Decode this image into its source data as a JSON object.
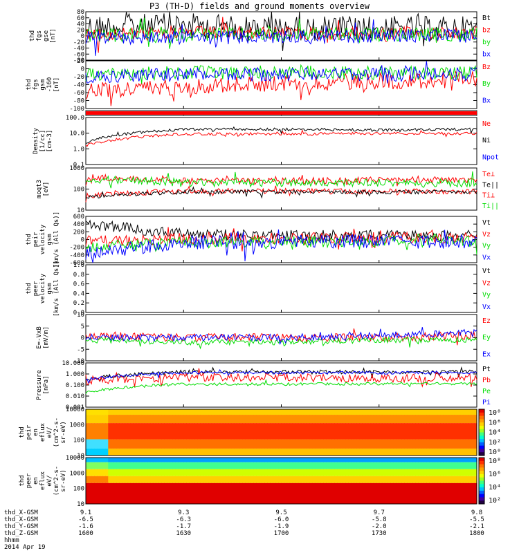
{
  "title": "P3 (TH-D) fields and ground moments overview",
  "date": "2014 Apr 19",
  "colors": {
    "black": "#000000",
    "red": "#ff0000",
    "green": "#00dd00",
    "blue": "#0000ff",
    "axis": "#000000"
  },
  "panels": [
    {
      "ylabel": [
        "thd",
        "fgs",
        "gse",
        "[nT]"
      ],
      "ticks": [
        "80",
        "60",
        "40",
        "20",
        "0",
        "-20",
        "-40",
        "-60",
        "-80"
      ],
      "yrange": [
        -80,
        80
      ],
      "legend": [
        {
          "text": "Bt",
          "color": "black"
        },
        {
          "text": "bz",
          "color": "red"
        },
        {
          "text": "by",
          "color": "green"
        },
        {
          "text": "bx",
          "color": "blue"
        }
      ]
    },
    {
      "ylabel": [
        "thd",
        "fgs",
        "gsm",
        "-160",
        "[nT]"
      ],
      "ticks": [
        "20",
        "0",
        "-20",
        "-40",
        "-60",
        "-80",
        "-100"
      ],
      "yrange": [
        -110,
        30
      ],
      "legend": [
        {
          "text": "Bz",
          "color": "red"
        },
        {
          "text": "By",
          "color": "green"
        },
        {
          "text": "Bx",
          "color": "blue"
        }
      ]
    },
    {
      "ylabel": [],
      "ticks": [],
      "legend": []
    },
    {
      "ylabel": [
        "Density",
        "[1/cc]",
        "[cm-3]"
      ],
      "ticks": [
        "100.0",
        "10.0",
        "1.0",
        "0.1"
      ],
      "yrange": [
        -1,
        2.2
      ],
      "log": true,
      "legend": [
        {
          "text": "Ne",
          "color": "red"
        },
        {
          "text": "Ni",
          "color": "black"
        },
        {
          "text": "Npot",
          "color": "blue"
        }
      ]
    },
    {
      "ylabel": [
        "moqt3",
        "[eV]"
      ],
      "ticks": [
        "1000",
        "100",
        "10"
      ],
      "yrange": [
        0.4,
        3.6
      ],
      "log": true,
      "legend": [
        {
          "text": "Te⊥",
          "color": "red"
        },
        {
          "text": "Te||",
          "color": "black"
        },
        {
          "text": "Ti⊥",
          "color": "red"
        },
        {
          "text": "Ti||",
          "color": "green"
        }
      ]
    },
    {
      "ylabel": [
        "thd",
        "peir",
        "velocity",
        "gsm",
        "[km/s (All Qs)]"
      ],
      "ticks": [
        "600",
        "400",
        "200",
        "0",
        "-200",
        "-400",
        "-600"
      ],
      "yrange": [
        -600,
        600
      ],
      "legend": [
        {
          "text": "Vt",
          "color": "black"
        },
        {
          "text": "Vz",
          "color": "red"
        },
        {
          "text": "Vy",
          "color": "green"
        },
        {
          "text": "Vx",
          "color": "blue"
        }
      ]
    },
    {
      "ylabel": [
        "thd",
        "peer",
        "velocity",
        "gsm",
        "[km/s (All Qs)]"
      ],
      "ticks": [
        "1.0",
        "0.8",
        "0.6",
        "0.4",
        "0.2",
        "0.0"
      ],
      "yrange": [
        0,
        1
      ],
      "legend": [
        {
          "text": "Vt",
          "color": "black"
        },
        {
          "text": "Vz",
          "color": "red"
        },
        {
          "text": "Vy",
          "color": "green"
        },
        {
          "text": "Vx",
          "color": "blue"
        }
      ]
    },
    {
      "ylabel": [
        "E=-VxB",
        "[mV/m]"
      ],
      "ticks": [
        "10",
        "5",
        "0",
        "-5",
        "-10"
      ],
      "yrange": [
        -10,
        10
      ],
      "legend": [
        {
          "text": "Ez",
          "color": "red"
        },
        {
          "text": "Ey",
          "color": "green"
        },
        {
          "text": "Ex",
          "color": "blue"
        }
      ]
    },
    {
      "ylabel": [
        "Pressure",
        "[nPa]"
      ],
      "ticks": [
        "10.000",
        "1.000",
        "0.100",
        "0.010",
        "0.001"
      ],
      "yrange": [
        -3,
        1
      ],
      "log": true,
      "legend": [
        {
          "text": "Pt",
          "color": "black"
        },
        {
          "text": "Pb",
          "color": "red"
        },
        {
          "text": "Pe",
          "color": "green"
        },
        {
          "text": "Pi",
          "color": "blue"
        }
      ]
    },
    {
      "ylabel": [
        "thd",
        "peir",
        "en",
        "eflux",
        "eV/",
        "(cm^2-s-",
        "sr-eV)"
      ],
      "ticks": [
        "10000",
        "1000",
        "100",
        "10"
      ],
      "cbar": [
        "10⁸",
        "10⁶",
        "10⁴",
        "10²",
        "10⁰"
      ]
    },
    {
      "ylabel": [
        "thd",
        "peer",
        "en",
        "eflux",
        "eV/",
        "(cm^2-s-",
        "sr-eV)"
      ],
      "ticks": [
        "10000",
        "1000",
        "100",
        "10"
      ],
      "cbar": [
        "10⁸",
        "10⁶",
        "10⁴",
        "10²"
      ]
    }
  ],
  "xaxis": {
    "rows": [
      {
        "label": "thd_X-GSM",
        "vals": [
          "9.1",
          "9.3",
          "9.5",
          "9.7",
          "9.8"
        ]
      },
      {
        "label": "thd_X-GSM",
        "vals": [
          "-6.5",
          "-6.3",
          "-6.0",
          "-5.8",
          "-5.5"
        ]
      },
      {
        "label": "thd_Y-GSM",
        "vals": [
          "-1.6",
          "-1.7",
          "-1.9",
          "-2.0",
          "-2.1"
        ]
      },
      {
        "label": "thd_Z-GSM",
        "vals": [
          "1600",
          "1630",
          "1700",
          "1730",
          "1800"
        ]
      },
      {
        "label": "hhmm",
        "vals": []
      }
    ]
  },
  "chart_data": [
    {
      "type": "line",
      "title": "thd fgs gse",
      "ylim": [
        -80,
        80
      ],
      "x": [
        "1600",
        "1630",
        "1700",
        "1730",
        "1800"
      ],
      "series": [
        {
          "name": "Bt",
          "values": [
            30,
            35,
            25,
            25,
            25
          ]
        },
        {
          "name": "bz",
          "values": [
            5,
            10,
            8,
            8,
            10
          ]
        },
        {
          "name": "by",
          "values": [
            0,
            5,
            5,
            5,
            5
          ]
        },
        {
          "name": "bx",
          "values": [
            -5,
            -5,
            -5,
            0,
            0
          ]
        }
      ]
    },
    {
      "type": "line",
      "title": "thd fgs gsm",
      "ylim": [
        -110,
        30
      ],
      "x": [
        "1600",
        "1630",
        "1700",
        "1730",
        "1800"
      ],
      "series": [
        {
          "name": "Bz",
          "values": [
            -60,
            -45,
            -35,
            -30,
            -25
          ]
        },
        {
          "name": "By",
          "values": [
            -10,
            -5,
            -2,
            -5,
            -5
          ]
        },
        {
          "name": "Bx",
          "values": [
            -15,
            -10,
            -10,
            -10,
            -10
          ]
        }
      ]
    },
    {
      "type": "line",
      "title": "Density",
      "ylim": [
        0.1,
        100
      ],
      "x": [
        "1600",
        "1630",
        "1700",
        "1730",
        "1800"
      ],
      "series": [
        {
          "name": "Ne",
          "values": [
            2,
            12,
            12,
            13,
            13
          ]
        },
        {
          "name": "Ni",
          "values": [
            3,
            25,
            25,
            22,
            25
          ]
        }
      ]
    },
    {
      "type": "line",
      "title": "moqt3",
      "ylim": [
        10,
        2000
      ],
      "x": [
        "1600",
        "1630",
        "1700",
        "1730",
        "1800"
      ],
      "series": [
        {
          "name": "Te⊥",
          "values": [
            30,
            70,
            70,
            65,
            65
          ]
        },
        {
          "name": "Te||",
          "values": [
            25,
            60,
            60,
            60,
            60
          ]
        },
        {
          "name": "Ti⊥",
          "values": [
            800,
            400,
            400,
            450,
            500
          ]
        },
        {
          "name": "Ti||",
          "values": [
            600,
            300,
            300,
            300,
            300
          ]
        }
      ]
    },
    {
      "type": "line",
      "title": "thd peir velocity gsm",
      "ylim": [
        -600,
        600
      ],
      "x": [
        "1600",
        "1630",
        "1700",
        "1730",
        "1800"
      ],
      "series": [
        {
          "name": "Vt",
          "values": [
            400,
            150,
            100,
            100,
            100
          ]
        },
        {
          "name": "Vz",
          "values": [
            -50,
            20,
            30,
            50,
            50
          ]
        },
        {
          "name": "Vy",
          "values": [
            -200,
            -80,
            -60,
            -50,
            -50
          ]
        },
        {
          "name": "Vx",
          "values": [
            -350,
            -80,
            -60,
            -50,
            -60
          ]
        }
      ]
    },
    {
      "type": "line",
      "title": "E=-VxB",
      "ylim": [
        -10,
        10
      ],
      "x": [
        "1600",
        "1630",
        "1700",
        "1730",
        "1800"
      ],
      "series": [
        {
          "name": "Ez",
          "values": [
            1,
            0,
            0,
            0,
            1
          ]
        },
        {
          "name": "Ey",
          "values": [
            -1,
            -2,
            -2,
            -1,
            -1
          ]
        },
        {
          "name": "Ex",
          "values": [
            0,
            0,
            0,
            1,
            2
          ]
        }
      ]
    },
    {
      "type": "line",
      "title": "Pressure",
      "ylim": [
        0.001,
        10
      ],
      "x": [
        "1600",
        "1630",
        "1700",
        "1730",
        "1800"
      ],
      "series": [
        {
          "name": "Pt",
          "values": [
            0.3,
            1.5,
            1.5,
            1.5,
            1.5
          ]
        },
        {
          "name": "Pb",
          "values": [
            0.2,
            0.5,
            0.5,
            0.4,
            0.5
          ]
        },
        {
          "name": "Pe",
          "values": [
            0.02,
            0.12,
            0.12,
            0.13,
            0.13
          ]
        },
        {
          "name": "Pi",
          "values": [
            0.3,
            1.3,
            1.3,
            1.3,
            1.3
          ]
        }
      ]
    }
  ]
}
